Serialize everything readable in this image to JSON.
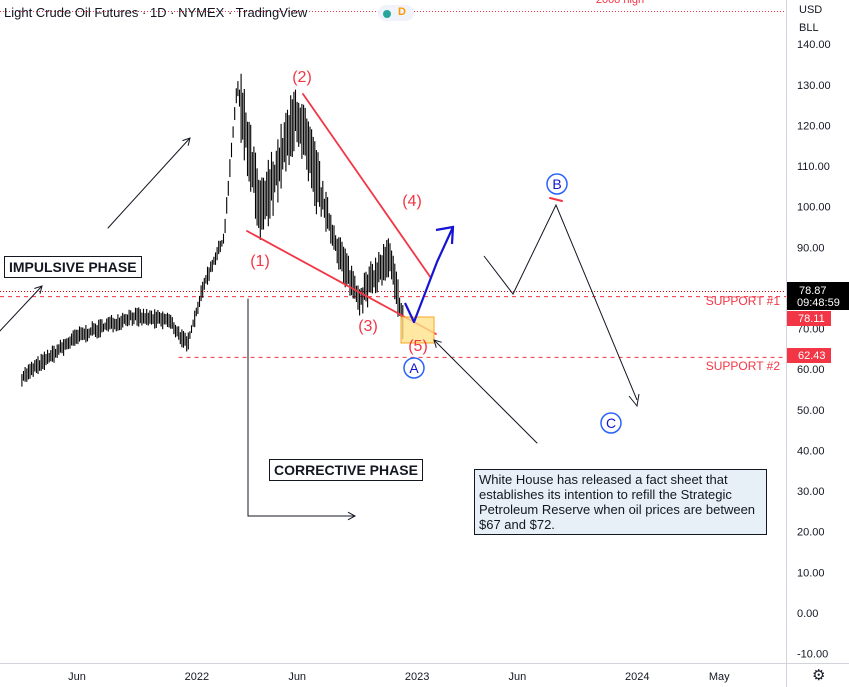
{
  "header": {
    "title": "Light Crude Oil Futures · 1D · NYMEX · TradingView",
    "logo_letter": "D",
    "high_note": "2008 high"
  },
  "price_axis": {
    "currency": "USD",
    "unit": "BLL",
    "ticks": [
      "140.00",
      "130.00",
      "120.00",
      "110.00",
      "100.00",
      "90.00",
      "80.00",
      "70.00",
      "60.00",
      "50.00",
      "40.00",
      "30.00",
      "20.00",
      "10.00",
      "0.00",
      "-10.00"
    ],
    "last_price": "78.87",
    "countdown": "09:48:59",
    "support1_value": "78.11",
    "support2_value": "62.43"
  },
  "time_axis": {
    "ticks": [
      "Jun",
      "2022",
      "Jun",
      "2023",
      "Jun",
      "2024",
      "May"
    ]
  },
  "annotations": {
    "impulsive_phase": "IMPULSIVE PHASE",
    "corrective_phase": "CORRECTIVE PHASE",
    "support1": "SUPPORT #1",
    "support2": "SUPPORT #2",
    "wave1": "(1)",
    "wave2": "(2)",
    "wave3": "(3)",
    "wave4": "(4)",
    "wave5": "(5)",
    "waveA": "A",
    "waveB": "B",
    "waveC": "C",
    "note": "White House has released a fact sheet that establishes its intention to refill the Strategic Petroleum Reserve when oil prices are between $67 and $72."
  },
  "colors": {
    "red": "#f23645",
    "blue": "#1414d2",
    "wave_circle": "#2962ff",
    "candle": "#000000",
    "zone_fill": "#ffe28a",
    "zone_stroke": "#f5a623",
    "note_bg": "#e7f0f7",
    "support_red": "#d50000"
  },
  "chart_data": {
    "type": "line",
    "title": "Light Crude Oil Futures",
    "x": [
      "2021-03",
      "2021-06",
      "2021-09",
      "2021-12",
      "2022-03-07",
      "2022-04",
      "2022-06-14",
      "2022-08",
      "2022-09-26",
      "2022-11",
      "2022-12-09",
      "2023-01",
      "2023-06",
      "2023-09",
      "2024-01"
    ],
    "series": [
      {
        "values": [
          58,
          68,
          73,
          68,
          130,
          98,
          123,
          92,
          77,
          88,
          71,
          null,
          null,
          null,
          null
        ]
      }
    ],
    "ylim": [
      -10,
      140
    ],
    "levels": [
      {
        "label": "SUPPORT #1",
        "value": 78.11
      },
      {
        "label": "SUPPORT #2",
        "value": 62.43
      },
      {
        "label": "",
        "value": 78.87
      }
    ],
    "grid": false
  }
}
